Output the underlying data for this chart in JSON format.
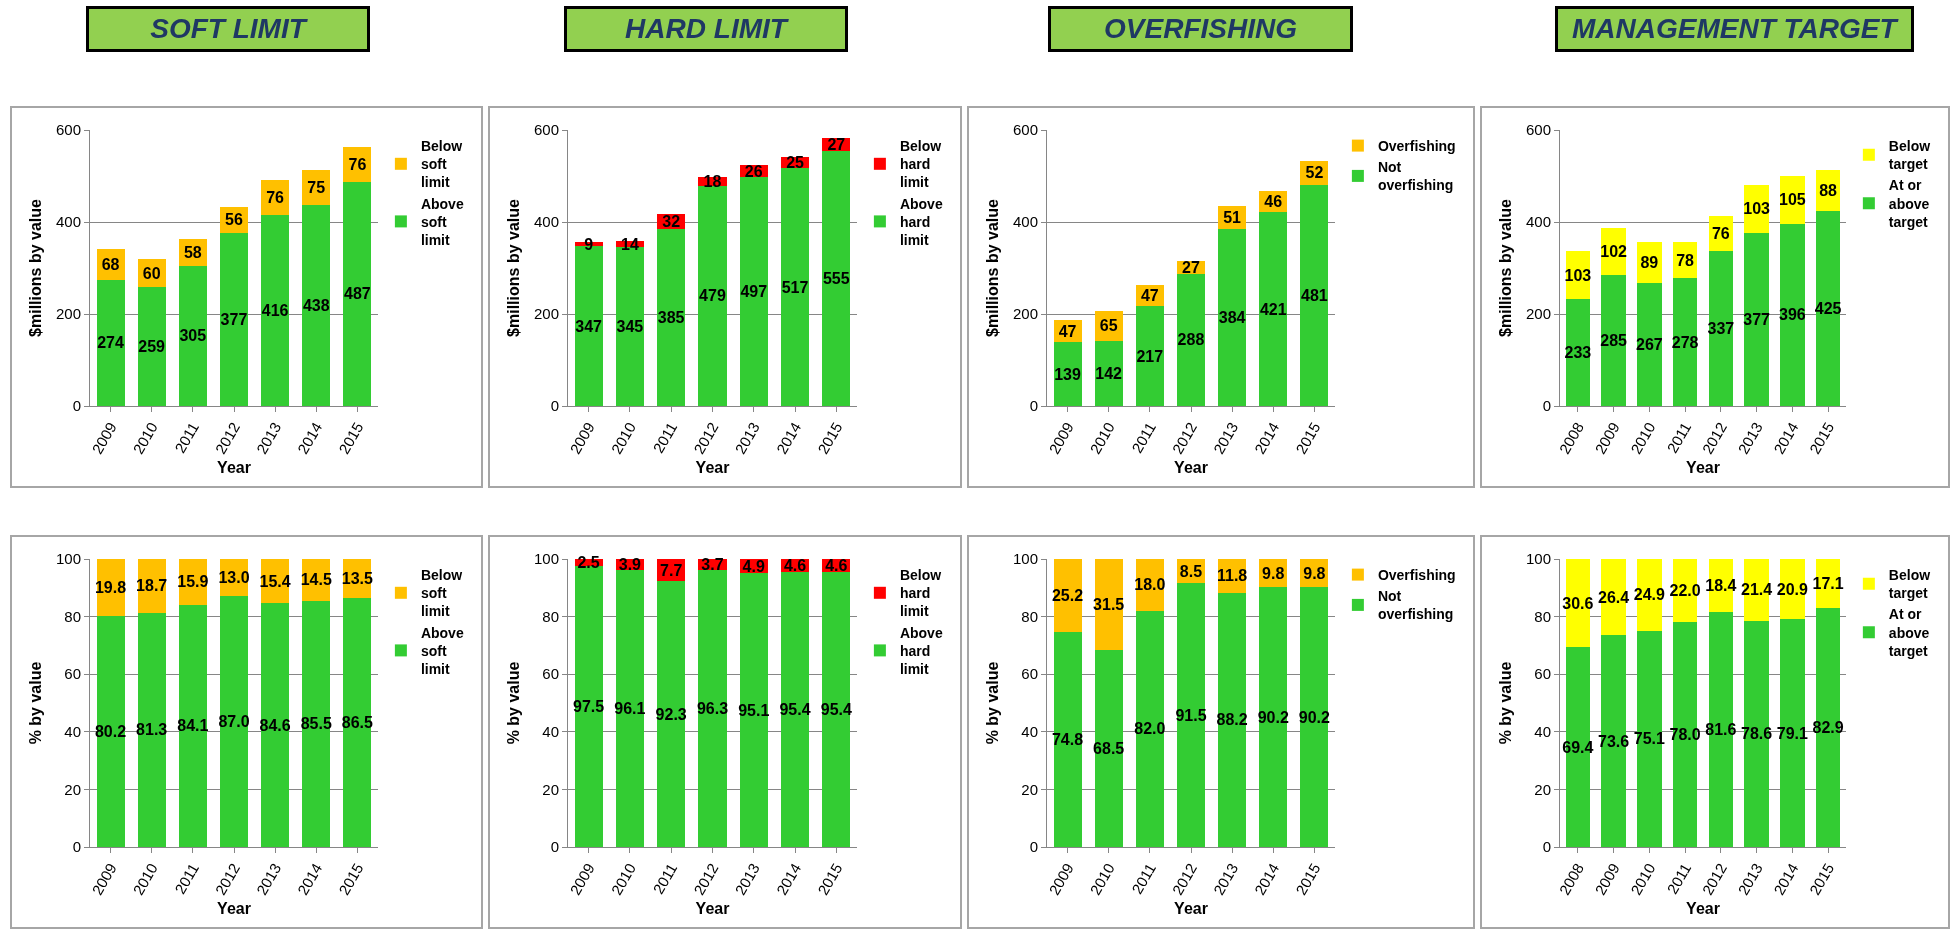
{
  "chart_data": [
    {
      "type": "bar",
      "title": "SOFT LIMIT",
      "stacked": true,
      "xlabel": "Year",
      "ylabel": "$millions by value",
      "categories": [
        "2009",
        "2010",
        "2011",
        "2012",
        "2013",
        "2014",
        "2015"
      ],
      "ylim": [
        0,
        600
      ],
      "yticks": [
        0,
        200,
        400,
        600
      ],
      "grid": "y",
      "legend": "right",
      "data_labels": true,
      "series": [
        {
          "name": "Above soft limit",
          "color": "#33cc33",
          "values": [
            274,
            259,
            305,
            377,
            416,
            438,
            487
          ]
        },
        {
          "name": "Below soft limit",
          "color": "#ffc000",
          "values": [
            68,
            60,
            58,
            56,
            76,
            75,
            76
          ]
        }
      ]
    },
    {
      "type": "bar",
      "title": "HARD LIMIT",
      "stacked": true,
      "xlabel": "Year",
      "ylabel": "$millions by value",
      "categories": [
        "2009",
        "2010",
        "2011",
        "2012",
        "2013",
        "2014",
        "2015"
      ],
      "ylim": [
        0,
        600
      ],
      "yticks": [
        0,
        200,
        400,
        600
      ],
      "grid": "y",
      "legend": "right",
      "data_labels": true,
      "series": [
        {
          "name": "Above hard limit",
          "color": "#33cc33",
          "values": [
            347,
            345,
            385,
            479,
            497,
            517,
            555
          ]
        },
        {
          "name": "Below hard limit",
          "color": "#ff0000",
          "values": [
            9,
            14,
            32,
            18,
            26,
            25,
            27
          ]
        }
      ]
    },
    {
      "type": "bar",
      "title": "OVERFISHING",
      "stacked": true,
      "xlabel": "Year",
      "ylabel": "$millions by value",
      "categories": [
        "2009",
        "2010",
        "2011",
        "2012",
        "2013",
        "2014",
        "2015"
      ],
      "ylim": [
        0,
        600
      ],
      "yticks": [
        0,
        200,
        400,
        600
      ],
      "grid": "y",
      "legend": "right",
      "data_labels": true,
      "series": [
        {
          "name": "Not overfishing",
          "color": "#33cc33",
          "values": [
            139,
            142,
            217,
            288,
            384,
            421,
            481
          ]
        },
        {
          "name": "Overfishing",
          "color": "#ffc000",
          "values": [
            47,
            65,
            47,
            27,
            51,
            46,
            52
          ]
        }
      ]
    },
    {
      "type": "bar",
      "title": "MANAGEMENT TARGET",
      "stacked": true,
      "xlabel": "Year",
      "ylabel": "$millions by value",
      "categories": [
        "2008",
        "2009",
        "2010",
        "2011",
        "2012",
        "2013",
        "2014",
        "2015"
      ],
      "ylim": [
        0,
        600
      ],
      "yticks": [
        0,
        200,
        400,
        600
      ],
      "grid": "y",
      "legend": "right",
      "data_labels": true,
      "series": [
        {
          "name": "At or above target",
          "color": "#33cc33",
          "values": [
            233,
            285,
            267,
            278,
            337,
            377,
            396,
            425
          ]
        },
        {
          "name": "Below target",
          "color": "#ffff00",
          "values": [
            103,
            102,
            89,
            78,
            76,
            103,
            105,
            88
          ]
        }
      ]
    },
    {
      "type": "bar",
      "stacked": true,
      "xlabel": "Year",
      "ylabel": "% by value",
      "categories": [
        "2009",
        "2010",
        "2011",
        "2012",
        "2013",
        "2014",
        "2015"
      ],
      "ylim": [
        0,
        100
      ],
      "yticks": [
        0,
        20,
        40,
        60,
        80,
        100
      ],
      "grid": "y",
      "legend": "right",
      "series": [
        {
          "name": "Above soft limit",
          "color": "#33cc33",
          "values": [
            80.2,
            81.3,
            84.1,
            87.0,
            84.6,
            85.5,
            86.5
          ],
          "value_labels": [
            "80.2",
            "81.3",
            "84.1",
            "87.0",
            "84.6",
            "85.5",
            "86.5"
          ]
        },
        {
          "name": "Below soft limit",
          "color": "#ffc000",
          "values": [
            19.8,
            18.7,
            15.9,
            13.0,
            15.4,
            14.5,
            13.5
          ],
          "value_labels": [
            "19.8",
            "18.7",
            "15.9",
            "13.0",
            "15.4",
            "14.5",
            "13.5"
          ]
        }
      ]
    },
    {
      "type": "bar",
      "stacked": true,
      "xlabel": "Year",
      "ylabel": "% by value",
      "categories": [
        "2009",
        "2010",
        "2011",
        "2012",
        "2013",
        "2014",
        "2015"
      ],
      "ylim": [
        0,
        100
      ],
      "yticks": [
        0,
        20,
        40,
        60,
        80,
        100
      ],
      "grid": "y",
      "legend": "right",
      "series": [
        {
          "name": "Above hard limit",
          "color": "#33cc33",
          "values": [
            97.5,
            96.1,
            92.3,
            96.3,
            95.1,
            95.4,
            95.4
          ],
          "value_labels": [
            "97.5",
            "96.1",
            "92.3",
            "96.3",
            "95.1",
            "95.4",
            "95.4"
          ]
        },
        {
          "name": "Below hard limit",
          "color": "#ff0000",
          "values": [
            2.5,
            3.9,
            7.7,
            3.7,
            4.9,
            4.6,
            4.6
          ],
          "value_labels": [
            "2.5",
            "3.9",
            "7.7",
            "3.7",
            "4.9",
            "4.6",
            "4.6"
          ]
        }
      ]
    },
    {
      "type": "bar",
      "stacked": true,
      "xlabel": "Year",
      "ylabel": "% by value",
      "categories": [
        "2009",
        "2010",
        "2011",
        "2012",
        "2013",
        "2014",
        "2015"
      ],
      "ylim": [
        0,
        100
      ],
      "yticks": [
        0,
        20,
        40,
        60,
        80,
        100
      ],
      "grid": "y",
      "legend": "right",
      "series": [
        {
          "name": "Not overfishing",
          "color": "#33cc33",
          "values": [
            74.8,
            68.5,
            82.0,
            91.5,
            88.2,
            90.2,
            90.2
          ],
          "value_labels": [
            "74.8",
            "68.5",
            "82.0",
            "91.5",
            "88.2",
            "90.2",
            "90.2"
          ]
        },
        {
          "name": "Overfishing",
          "color": "#ffc000",
          "values": [
            25.2,
            31.5,
            18.0,
            8.5,
            11.8,
            9.8,
            9.8
          ],
          "value_labels": [
            "25.2",
            "31.5",
            "18.0",
            "8.5",
            "11.8",
            "9.8",
            "9.8"
          ]
        }
      ]
    },
    {
      "type": "bar",
      "stacked": true,
      "xlabel": "Year",
      "ylabel": "% by value",
      "categories": [
        "2008",
        "2009",
        "2010",
        "2011",
        "2012",
        "2013",
        "2014",
        "2015"
      ],
      "ylim": [
        0,
        100
      ],
      "yticks": [
        0,
        20,
        40,
        60,
        80,
        100
      ],
      "grid": "y",
      "legend": "right",
      "series": [
        {
          "name": "At or above target",
          "color": "#33cc33",
          "values": [
            69.4,
            73.6,
            75.1,
            78.0,
            81.6,
            78.6,
            79.1,
            82.9
          ],
          "value_labels": [
            "69.4",
            "73.6",
            "75.1",
            "78.0",
            "81.6",
            "78.6",
            "79.1",
            "82.9"
          ]
        },
        {
          "name": "Below target",
          "color": "#ffff00",
          "values": [
            30.6,
            26.4,
            24.9,
            22.0,
            18.4,
            21.4,
            20.9,
            17.1
          ],
          "value_labels": [
            "30.6",
            "26.4",
            "24.9",
            "22.0",
            "18.4",
            "21.4",
            "20.9",
            "17.1"
          ]
        }
      ]
    }
  ]
}
